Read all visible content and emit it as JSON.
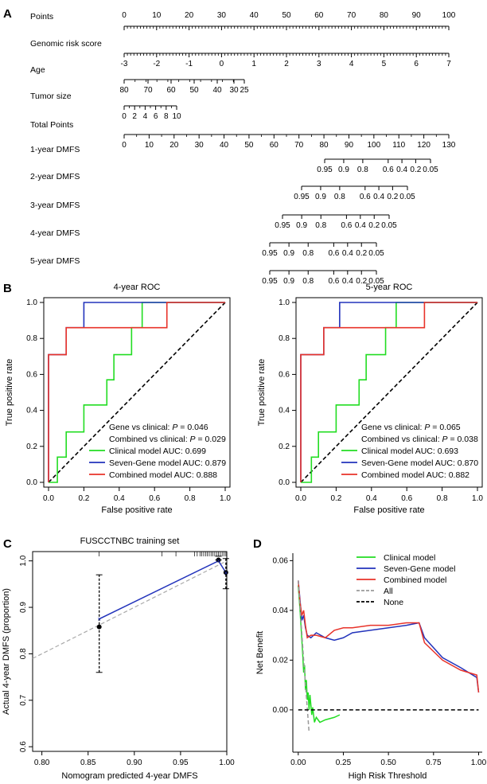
{
  "panels": {
    "a": "A",
    "b": "B",
    "c": "C",
    "d": "D"
  },
  "chart_data": [
    {
      "type": "nomogram",
      "panel": "A",
      "rows": [
        {
          "label": "Points",
          "ticks": [
            "0",
            "10",
            "20",
            "30",
            "40",
            "50",
            "60",
            "70",
            "80",
            "90",
            "100"
          ]
        },
        {
          "label": "Genomic risk score",
          "ticks": [
            "-3",
            "-2",
            "-1",
            "0",
            "1",
            "2",
            "3",
            "4",
            "5",
            "6",
            "7"
          ]
        },
        {
          "label": "Age",
          "ticks": [
            "80",
            "70",
            "60",
            "50",
            "40",
            "30",
            "25"
          ]
        },
        {
          "label": "Tumor size",
          "ticks": [
            "0",
            "2",
            "4",
            "6",
            "8",
            "10"
          ]
        },
        {
          "label": "Total Points",
          "ticks": [
            "0",
            "10",
            "20",
            "30",
            "40",
            "50",
            "60",
            "70",
            "80",
            "90",
            "100",
            "110",
            "120",
            "130"
          ]
        },
        {
          "label": "1-year DMFS",
          "ticks": [
            "0.95",
            "0.9",
            "0.8",
            "0.6",
            "0.4",
            "0.2",
            "0.05"
          ]
        },
        {
          "label": "2-year DMFS",
          "ticks": [
            "0.95",
            "0.9",
            "0.8",
            "0.6",
            "0.4",
            "0.2",
            "0.05"
          ]
        },
        {
          "label": "3-year DMFS",
          "ticks": [
            "0.95",
            "0.9",
            "0.8",
            "0.6",
            "0.4",
            "0.2",
            "0.05"
          ]
        },
        {
          "label": "4-year DMFS",
          "ticks": [
            "0.95",
            "0.9",
            "0.8",
            "0.6",
            "0.4",
            "0.2",
            "0.05"
          ]
        },
        {
          "label": "5-year DMFS",
          "ticks": [
            "0.95",
            "0.9",
            "0.8",
            "0.6",
            "0.4",
            "0.2",
            "0.05"
          ]
        }
      ]
    },
    {
      "type": "line",
      "panel": "B",
      "title": "4-year ROC",
      "xlabel": "False positive rate",
      "ylabel": "True positive rate",
      "xlim": [
        0,
        1
      ],
      "ylim": [
        0,
        1
      ],
      "xticks": [
        "0.0",
        "0.2",
        "0.4",
        "0.6",
        "0.8",
        "1.0"
      ],
      "yticks": [
        "0.0",
        "0.2",
        "0.4",
        "0.6",
        "0.8",
        "1.0"
      ],
      "annotations": [
        {
          "prefix": "Gene vs clinical: ",
          "p": "P",
          "suffix": " = 0.046"
        },
        {
          "prefix": "Combined vs clinical: ",
          "p": "P",
          "suffix": " = 0.029"
        }
      ],
      "series": [
        {
          "name": "Clinical model AUC: 0.699",
          "color": "#22dd22",
          "x": [
            0,
            0.05,
            0.05,
            0.1,
            0.1,
            0.2,
            0.2,
            0.33,
            0.33,
            0.37,
            0.37,
            0.47,
            0.47,
            0.53,
            0.53,
            1
          ],
          "y": [
            0,
            0,
            0.14,
            0.14,
            0.28,
            0.28,
            0.43,
            0.43,
            0.57,
            0.57,
            0.71,
            0.71,
            0.86,
            0.86,
            1,
            1
          ]
        },
        {
          "name": "Seven-Gene model AUC: 0.879",
          "color": "#2233bb",
          "x": [
            0,
            0,
            0.1,
            0.1,
            0.2,
            0.2,
            0.67,
            0.67,
            1
          ],
          "y": [
            0,
            0.71,
            0.71,
            0.86,
            0.86,
            1,
            1,
            1,
            1
          ]
        },
        {
          "name": "Combined model AUC: 0.888",
          "color": "#e8332a",
          "x": [
            0,
            0,
            0.1,
            0.1,
            0.67,
            0.67,
            1
          ],
          "y": [
            0,
            0.71,
            0.71,
            0.86,
            0.86,
            1,
            1
          ]
        }
      ]
    },
    {
      "type": "line",
      "panel": "B",
      "title": "5-year ROC",
      "xlabel": "False positive rate",
      "ylabel": "True positive rate",
      "xlim": [
        0,
        1
      ],
      "ylim": [
        0,
        1
      ],
      "xticks": [
        "0.0",
        "0.2",
        "0.4",
        "0.6",
        "0.8",
        "1.0"
      ],
      "yticks": [
        "0.0",
        "0.2",
        "0.4",
        "0.6",
        "0.8",
        "1.0"
      ],
      "annotations": [
        {
          "prefix": "Gene vs clinical: ",
          "p": "P",
          "suffix": " = 0.065"
        },
        {
          "prefix": "Combined vs clinical: ",
          "p": "P",
          "suffix": " = 0.038"
        }
      ],
      "series": [
        {
          "name": "Clinical model AUC: 0.693",
          "color": "#22dd22",
          "x": [
            0,
            0.06,
            0.06,
            0.1,
            0.1,
            0.2,
            0.2,
            0.33,
            0.33,
            0.37,
            0.37,
            0.48,
            0.48,
            0.54,
            0.54,
            1
          ],
          "y": [
            0,
            0,
            0.14,
            0.14,
            0.28,
            0.28,
            0.43,
            0.43,
            0.57,
            0.57,
            0.71,
            0.71,
            0.86,
            0.86,
            1,
            1
          ]
        },
        {
          "name": "Seven-Gene model AUC: 0.870",
          "color": "#2233bb",
          "x": [
            0,
            0,
            0.13,
            0.13,
            0.22,
            0.22,
            0.7,
            0.7,
            1
          ],
          "y": [
            0,
            0.71,
            0.71,
            0.86,
            0.86,
            1,
            1,
            1,
            1
          ]
        },
        {
          "name": "Combined model AUC: 0.882",
          "color": "#e8332a",
          "x": [
            0,
            0,
            0.13,
            0.13,
            0.7,
            0.7,
            1
          ],
          "y": [
            0,
            0.71,
            0.71,
            0.86,
            0.86,
            1,
            1
          ]
        }
      ]
    },
    {
      "type": "scatter",
      "panel": "C",
      "title": "FUSCCTNBC training set",
      "xlabel": "Nomogram predicted 4-year DMFS",
      "ylabel": "Actual 4-year DMFS (proportion)",
      "xlim": [
        0.79,
        1.0
      ],
      "ylim": [
        0.59,
        1.02
      ],
      "xticks": [
        "0.80",
        "0.85",
        "0.90",
        "0.95",
        "1.00"
      ],
      "yticks": [
        "0.6",
        "0.7",
        "0.8",
        "0.9",
        "1.0"
      ],
      "points": [
        {
          "x": 0.862,
          "y": 0.858,
          "lo": 0.76,
          "hi": 0.97,
          "cross_y": 0.875
        },
        {
          "x": 0.991,
          "y": 1.002,
          "lo": 1.002,
          "hi": 1.01,
          "cross_y": 1.0
        },
        {
          "x": 0.999,
          "y": 0.975,
          "lo": 0.94,
          "hi": 1.005,
          "cross_y": 0.975
        }
      ],
      "calibration_line": {
        "x": [
          0.862,
          0.991,
          0.999
        ],
        "y": [
          0.875,
          1.0,
          0.975
        ]
      },
      "rug_x": [
        0.965,
        0.968,
        0.971,
        0.973,
        0.975,
        0.977,
        0.979,
        0.981,
        0.983,
        0.985,
        0.987,
        0.989,
        0.991,
        0.993,
        0.995,
        0.997,
        0.999,
        0.862,
        0.93,
        0.945
      ]
    },
    {
      "type": "line",
      "panel": "D",
      "xlabel": "High Risk Threshold",
      "ylabel": "Net Benefit",
      "xlim": [
        -0.03,
        1.02
      ],
      "ylim": [
        -0.017,
        0.063
      ],
      "xticks": [
        "0.00",
        "0.25",
        "0.50",
        "0.75",
        "1.00"
      ],
      "yticks": [
        "0.00",
        "0.02",
        "0.04",
        "0.06"
      ],
      "series": [
        {
          "name": "Clinical model",
          "color": "#22dd22",
          "style": "solid",
          "x": [
            0,
            0.01,
            0.015,
            0.02,
            0.025,
            0.03,
            0.035,
            0.04,
            0.045,
            0.05,
            0.055,
            0.06,
            0.065,
            0.07,
            0.075,
            0.08,
            0.09,
            0.1,
            0.12,
            0.15,
            0.2,
            0.23
          ],
          "y": [
            0.05,
            0.04,
            0.034,
            0.028,
            0.022,
            0.015,
            0.018,
            0.008,
            0.012,
            0.004,
            0.007,
            0.0,
            0.006,
            0.002,
            -0.002,
            0.001,
            -0.005,
            -0.003,
            -0.005,
            -0.004,
            -0.003,
            -0.002
          ]
        },
        {
          "name": "Seven-Gene model",
          "color": "#2233bb",
          "style": "solid",
          "x": [
            0,
            0.01,
            0.02,
            0.03,
            0.04,
            0.05,
            0.07,
            0.1,
            0.15,
            0.2,
            0.25,
            0.3,
            0.4,
            0.5,
            0.6,
            0.67,
            0.7,
            0.8,
            0.9,
            0.99,
            1.0
          ],
          "y": [
            0.052,
            0.044,
            0.036,
            0.038,
            0.033,
            0.03,
            0.029,
            0.031,
            0.029,
            0.028,
            0.029,
            0.031,
            0.032,
            0.033,
            0.034,
            0.035,
            0.029,
            0.021,
            0.017,
            0.013,
            0.007
          ]
        },
        {
          "name": "Combined model",
          "color": "#e8332a",
          "style": "solid",
          "x": [
            0,
            0.01,
            0.02,
            0.03,
            0.04,
            0.05,
            0.07,
            0.1,
            0.15,
            0.2,
            0.25,
            0.3,
            0.4,
            0.5,
            0.6,
            0.67,
            0.7,
            0.8,
            0.9,
            0.99,
            1.0
          ],
          "y": [
            0.052,
            0.043,
            0.038,
            0.04,
            0.034,
            0.029,
            0.03,
            0.03,
            0.029,
            0.032,
            0.033,
            0.033,
            0.034,
            0.034,
            0.035,
            0.035,
            0.027,
            0.02,
            0.016,
            0.014,
            0.007
          ]
        },
        {
          "name": "All",
          "color": "#999999",
          "style": "dashed",
          "x": [
            0,
            0.03,
            0.06
          ],
          "y": [
            0.052,
            0.02,
            -0.009
          ]
        },
        {
          "name": "None",
          "color": "#000000",
          "style": "dashed",
          "x": [
            0,
            1.0
          ],
          "y": [
            0,
            0
          ]
        }
      ]
    }
  ]
}
